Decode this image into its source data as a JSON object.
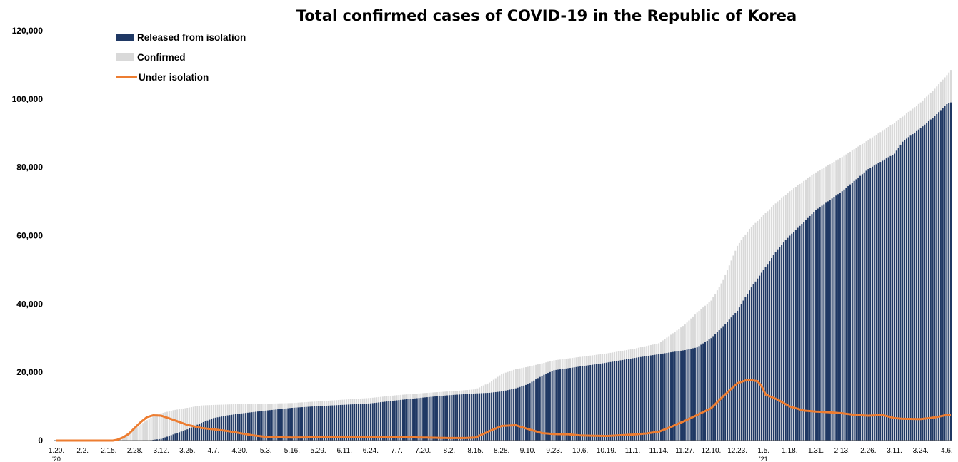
{
  "colors": {
    "released": "#1F3864",
    "confirmed": "#D9D9D9",
    "under_isolation": "#ED7D31",
    "axis": "#000000"
  },
  "chart_data": {
    "type": "bar",
    "title": "Total confirmed cases of COVID-19 in the Republic of Korea",
    "xlabel": "",
    "ylabel": "",
    "ylim": [
      0,
      120000
    ],
    "yticks": [
      0,
      20000,
      40000,
      60000,
      80000,
      100000,
      120000
    ],
    "ytick_labels": [
      "0",
      "20,000",
      "40,000",
      "60,000",
      "80,000",
      "100,000",
      "120,000"
    ],
    "grid": false,
    "legend_position": "top-left",
    "x_ticks": [
      {
        "label": "1.20.",
        "year": "'20",
        "day": 0
      },
      {
        "label": "2.2.",
        "day": 13
      },
      {
        "label": "2.15.",
        "day": 26
      },
      {
        "label": "2.28.",
        "day": 39
      },
      {
        "label": "3.12.",
        "day": 52
      },
      {
        "label": "3.25.",
        "day": 65
      },
      {
        "label": "4.7.",
        "day": 78
      },
      {
        "label": "4.20.",
        "day": 91
      },
      {
        "label": "5.3.",
        "day": 104
      },
      {
        "label": "5.16.",
        "day": 117
      },
      {
        "label": "5.29.",
        "day": 130
      },
      {
        "label": "6.11.",
        "day": 143
      },
      {
        "label": "6.24.",
        "day": 156
      },
      {
        "label": "7.7.",
        "day": 169
      },
      {
        "label": "7.20.",
        "day": 182
      },
      {
        "label": "8.2.",
        "day": 195
      },
      {
        "label": "8.15.",
        "day": 208
      },
      {
        "label": "8.28.",
        "day": 221
      },
      {
        "label": "9.10.",
        "day": 234
      },
      {
        "label": "9.23.",
        "day": 247
      },
      {
        "label": "10.6.",
        "day": 260
      },
      {
        "label": "10.19.",
        "day": 273
      },
      {
        "label": "11.1.",
        "day": 286
      },
      {
        "label": "11.14.",
        "day": 299
      },
      {
        "label": "11.27.",
        "day": 312
      },
      {
        "label": "12.10.",
        "day": 325
      },
      {
        "label": "12.23.",
        "day": 338
      },
      {
        "label": "1.5.",
        "year": "'21",
        "day": 351
      },
      {
        "label": "1.18.",
        "day": 364
      },
      {
        "label": "1.31.",
        "day": 377
      },
      {
        "label": "2.13.",
        "day": 390
      },
      {
        "label": "2.26.",
        "day": 403
      },
      {
        "label": "3.11.",
        "day": 416
      },
      {
        "label": "3.24.",
        "day": 429
      },
      {
        "label": "4.6.",
        "day": 442
      }
    ],
    "series": [
      {
        "name": "Released from isolation",
        "kind": "bar",
        "keypoints": [
          [
            0,
            0
          ],
          [
            28,
            0
          ],
          [
            39,
            0
          ],
          [
            45,
            0
          ],
          [
            52,
            500
          ],
          [
            58,
            1800
          ],
          [
            65,
            3300
          ],
          [
            72,
            5200
          ],
          [
            78,
            6600
          ],
          [
            85,
            7400
          ],
          [
            91,
            7900
          ],
          [
            104,
            8800
          ],
          [
            117,
            9600
          ],
          [
            130,
            10100
          ],
          [
            143,
            10500
          ],
          [
            156,
            10900
          ],
          [
            169,
            11800
          ],
          [
            182,
            12600
          ],
          [
            195,
            13300
          ],
          [
            208,
            13800
          ],
          [
            215,
            14000
          ],
          [
            221,
            14400
          ],
          [
            228,
            15300
          ],
          [
            234,
            16500
          ],
          [
            241,
            19000
          ],
          [
            247,
            20600
          ],
          [
            260,
            21700
          ],
          [
            273,
            22800
          ],
          [
            286,
            24100
          ],
          [
            299,
            25300
          ],
          [
            312,
            26500
          ],
          [
            318,
            27300
          ],
          [
            325,
            30000
          ],
          [
            331,
            33500
          ],
          [
            338,
            38000
          ],
          [
            344,
            44000
          ],
          [
            351,
            50000
          ],
          [
            358,
            56000
          ],
          [
            364,
            60000
          ],
          [
            371,
            64000
          ],
          [
            377,
            67500
          ],
          [
            390,
            73000
          ],
          [
            403,
            79500
          ],
          [
            416,
            84000
          ],
          [
            420,
            87500
          ],
          [
            429,
            91500
          ],
          [
            436,
            95000
          ],
          [
            442,
            98500
          ],
          [
            444,
            99000
          ]
        ]
      },
      {
        "name": "Confirmed",
        "kind": "bar",
        "keypoints": [
          [
            0,
            1
          ],
          [
            26,
            28
          ],
          [
            29,
            100
          ],
          [
            31,
            400
          ],
          [
            35,
            2000
          ],
          [
            39,
            3500
          ],
          [
            45,
            6000
          ],
          [
            50,
            7800
          ],
          [
            52,
            8000
          ],
          [
            58,
            8900
          ],
          [
            65,
            9600
          ],
          [
            72,
            10300
          ],
          [
            78,
            10450
          ],
          [
            91,
            10700
          ],
          [
            104,
            10800
          ],
          [
            117,
            11000
          ],
          [
            130,
            11500
          ],
          [
            143,
            12000
          ],
          [
            156,
            12500
          ],
          [
            169,
            13300
          ],
          [
            182,
            13900
          ],
          [
            195,
            14400
          ],
          [
            208,
            15000
          ],
          [
            215,
            17000
          ],
          [
            221,
            19500
          ],
          [
            228,
            20900
          ],
          [
            234,
            21600
          ],
          [
            241,
            22600
          ],
          [
            247,
            23500
          ],
          [
            260,
            24500
          ],
          [
            273,
            25500
          ],
          [
            286,
            26800
          ],
          [
            299,
            28500
          ],
          [
            305,
            31000
          ],
          [
            312,
            34000
          ],
          [
            318,
            37500
          ],
          [
            325,
            41000
          ],
          [
            331,
            47000
          ],
          [
            338,
            57000
          ],
          [
            344,
            62000
          ],
          [
            351,
            66000
          ],
          [
            358,
            70000
          ],
          [
            364,
            73000
          ],
          [
            371,
            76000
          ],
          [
            377,
            78500
          ],
          [
            390,
            83000
          ],
          [
            403,
            88000
          ],
          [
            416,
            93000
          ],
          [
            429,
            99000
          ],
          [
            436,
            103000
          ],
          [
            442,
            107000
          ],
          [
            444,
            108500
          ]
        ]
      },
      {
        "name": "Under isolation",
        "kind": "line",
        "keypoints": [
          [
            0,
            0
          ],
          [
            28,
            0
          ],
          [
            30,
            200
          ],
          [
            33,
            900
          ],
          [
            36,
            2000
          ],
          [
            39,
            3800
          ],
          [
            42,
            5500
          ],
          [
            45,
            6900
          ],
          [
            48,
            7400
          ],
          [
            52,
            7300
          ],
          [
            58,
            6100
          ],
          [
            65,
            4600
          ],
          [
            72,
            3700
          ],
          [
            78,
            3300
          ],
          [
            85,
            2800
          ],
          [
            91,
            2200
          ],
          [
            98,
            1500
          ],
          [
            104,
            1100
          ],
          [
            111,
            950
          ],
          [
            117,
            900
          ],
          [
            130,
            950
          ],
          [
            143,
            1100
          ],
          [
            150,
            1150
          ],
          [
            156,
            1000
          ],
          [
            169,
            1000
          ],
          [
            182,
            900
          ],
          [
            195,
            750
          ],
          [
            203,
            750
          ],
          [
            208,
            900
          ],
          [
            215,
            2800
          ],
          [
            221,
            4300
          ],
          [
            228,
            4500
          ],
          [
            234,
            3400
          ],
          [
            241,
            2200
          ],
          [
            247,
            1900
          ],
          [
            254,
            1850
          ],
          [
            260,
            1500
          ],
          [
            273,
            1350
          ],
          [
            286,
            1750
          ],
          [
            293,
            2100
          ],
          [
            299,
            2600
          ],
          [
            305,
            4000
          ],
          [
            312,
            5800
          ],
          [
            318,
            7500
          ],
          [
            325,
            9500
          ],
          [
            331,
            13000
          ],
          [
            335,
            15200
          ],
          [
            338,
            16800
          ],
          [
            342,
            17600
          ],
          [
            345,
            17700
          ],
          [
            348,
            17400
          ],
          [
            350,
            16000
          ],
          [
            352,
            13500
          ],
          [
            358,
            12000
          ],
          [
            364,
            10000
          ],
          [
            371,
            8800
          ],
          [
            377,
            8500
          ],
          [
            384,
            8300
          ],
          [
            390,
            8000
          ],
          [
            397,
            7500
          ],
          [
            403,
            7300
          ],
          [
            410,
            7500
          ],
          [
            416,
            6600
          ],
          [
            420,
            6400
          ],
          [
            429,
            6300
          ],
          [
            436,
            6800
          ],
          [
            442,
            7500
          ],
          [
            444,
            7600
          ]
        ]
      }
    ]
  }
}
